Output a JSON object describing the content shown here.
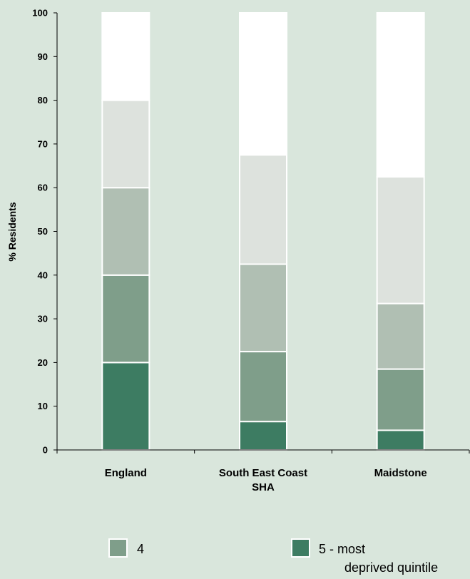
{
  "chart_data": {
    "type": "bar",
    "stacked": true,
    "categories": [
      [
        "England"
      ],
      [
        "South East Coast",
        "SHA"
      ],
      [
        "Maidstone"
      ]
    ],
    "series": [
      {
        "name": "5 - most deprived quintile",
        "legend_lines": [
          "5 - most",
          "deprived quintile"
        ],
        "color": "#3d7c62",
        "values": [
          20,
          6.5,
          4.5
        ],
        "in_legend": true
      },
      {
        "name": "4",
        "legend_lines": [
          "4"
        ],
        "color": "#7f9e8a",
        "values": [
          20,
          16,
          14
        ],
        "in_legend": true
      },
      {
        "color": "#b0bfb3",
        "values": [
          20,
          20,
          15
        ],
        "in_legend": false
      },
      {
        "color": "#dde2dd",
        "values": [
          20,
          25,
          29
        ],
        "in_legend": false
      },
      {
        "color": "#ffffff",
        "values": [
          20,
          32.5,
          37.5
        ],
        "in_legend": false
      }
    ],
    "ylabel": "% Residents",
    "ylim": [
      0,
      100
    ],
    "yticks": [
      0,
      10,
      20,
      30,
      40,
      50,
      60,
      70,
      80,
      90,
      100
    ],
    "grid": false,
    "legend_position": "bottom"
  }
}
